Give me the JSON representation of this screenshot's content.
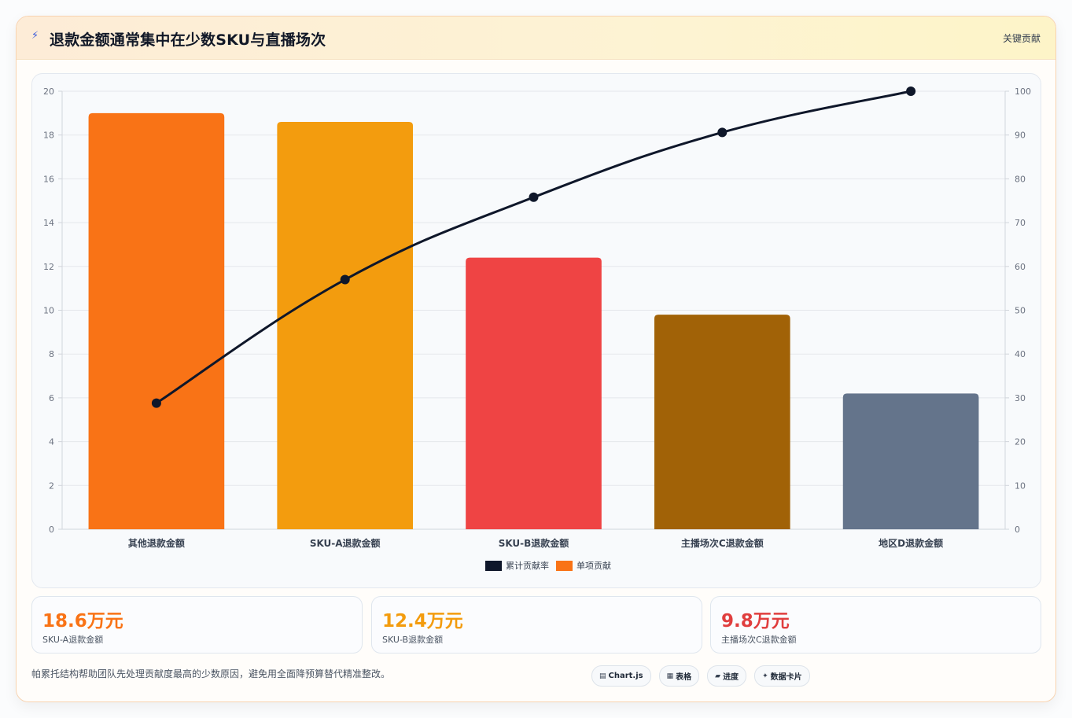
{
  "header": {
    "icon": "lightning-icon",
    "title": "退款金额通常集中在少数SKU与直播场次",
    "tag": "关键贡献"
  },
  "chart_data": {
    "type": "bar",
    "categories": [
      "其他退款金额",
      "SKU-A退款金额",
      "SKU-B退款金额",
      "主播场次C退款金额",
      "地区D退款金额"
    ],
    "series": [
      {
        "name": "单项贡献",
        "type": "bar",
        "axis": "left",
        "values": [
          19.0,
          18.6,
          12.4,
          9.8,
          6.2
        ],
        "colors": [
          "#f97316",
          "#f39c0e",
          "#ef4444",
          "#a16207",
          "#64748b"
        ]
      },
      {
        "name": "累计贡献率",
        "type": "line",
        "axis": "right",
        "values": [
          28.8,
          57.0,
          75.8,
          90.6,
          100.0
        ],
        "color": "#0f172a"
      }
    ],
    "ylim_left": [
      0,
      20
    ],
    "yticks_left": [
      0,
      2,
      4,
      6,
      8,
      10,
      12,
      14,
      16,
      18,
      20
    ],
    "ylim_right": [
      0,
      100
    ],
    "yticks_right": [
      0,
      10,
      20,
      30,
      40,
      50,
      60,
      70,
      80,
      90,
      100
    ],
    "grid": true,
    "legend_position": "bottom",
    "legend": [
      {
        "name": "累计贡献率",
        "color": "#0f172a"
      },
      {
        "name": "单项贡献",
        "color": "#f97316"
      }
    ]
  },
  "kpis": [
    {
      "value": "18.6万元",
      "label": "SKU-A退款金额",
      "color": "#f97316"
    },
    {
      "value": "12.4万元",
      "label": "SKU-B退款金额",
      "color": "#f39c0e"
    },
    {
      "value": "9.8万元",
      "label": "主播场次C退款金额",
      "color": "#e03e3e"
    }
  ],
  "note": "帕累托结构帮助团队先处理贡献度最高的少数原因，避免用全面降预算替代精准整改。",
  "chips": [
    {
      "icon": "chart-icon",
      "label": "Chart.js"
    },
    {
      "icon": "table-icon",
      "label": "表格"
    },
    {
      "icon": "progress-icon",
      "label": "进度"
    },
    {
      "icon": "card-icon",
      "label": "数据卡片"
    }
  ]
}
